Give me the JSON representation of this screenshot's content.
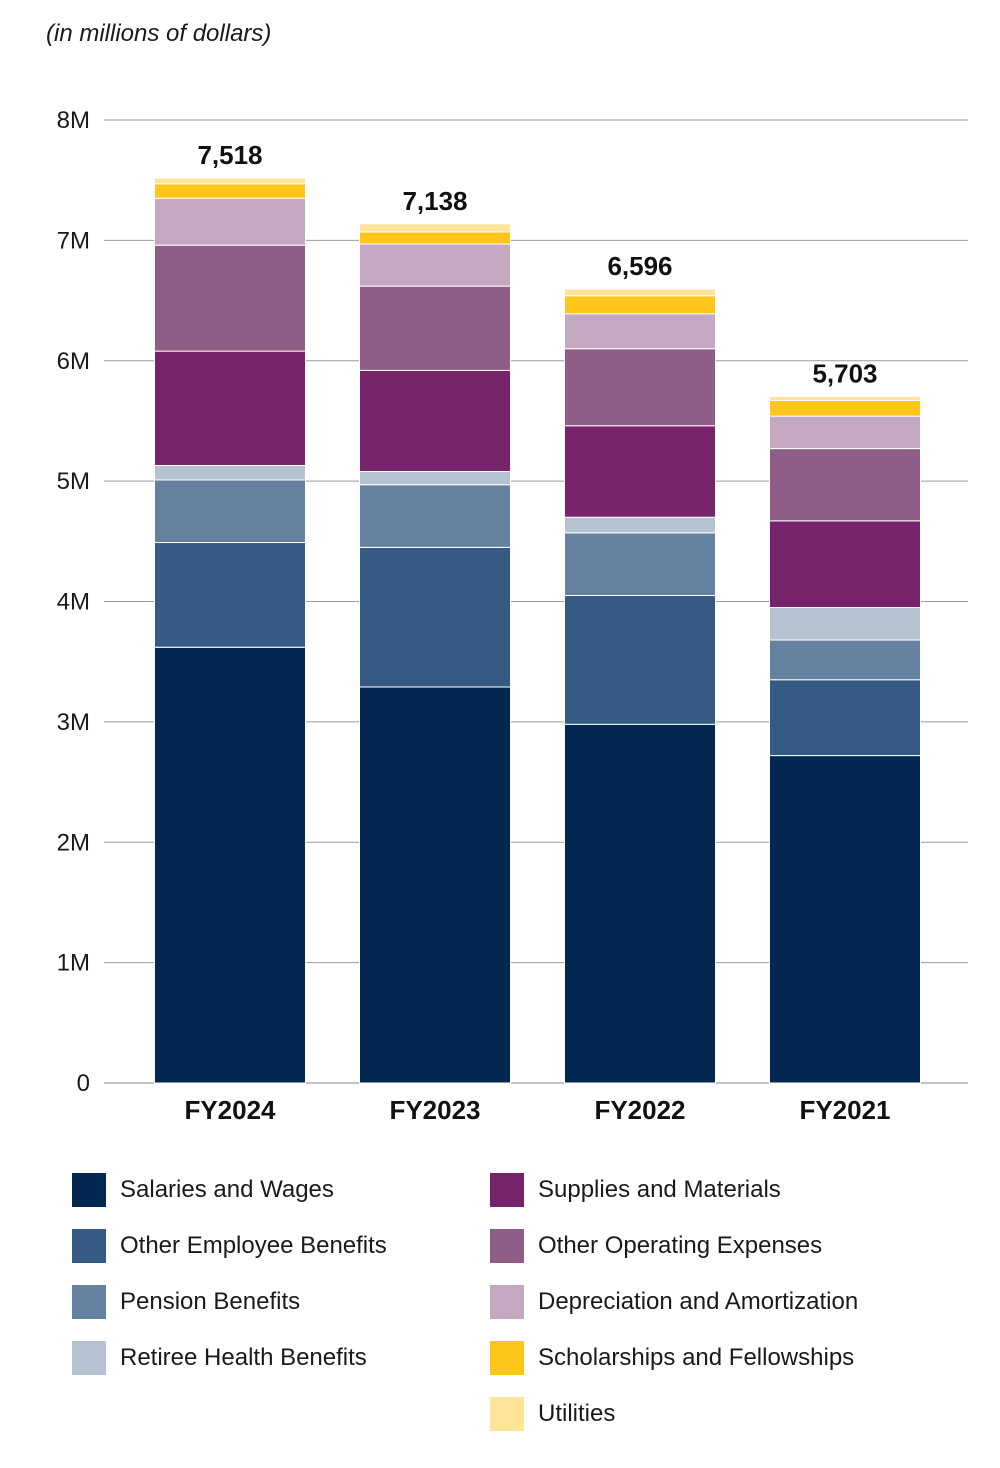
{
  "chart_data": {
    "type": "bar",
    "stacked": true,
    "subtitle": "(in millions of dollars)",
    "categories": [
      "FY2024",
      "FY2023",
      "FY2022",
      "FY2021"
    ],
    "totals": [
      "7,518",
      "7,138",
      "6,596",
      "5,703"
    ],
    "y_ticks": [
      "0",
      "1M",
      "2M",
      "3M",
      "4M",
      "5M",
      "6M",
      "7M",
      "8M"
    ],
    "ylim": [
      0,
      8000
    ],
    "grid": true,
    "legend_position": "bottom",
    "series": [
      {
        "name": "Salaries and Wages",
        "color": "#022851",
        "values": [
          3620,
          3290,
          2980,
          2720
        ]
      },
      {
        "name": "Other Employee Benefits",
        "color": "#355b85",
        "values": [
          870,
          1160,
          1070,
          630
        ]
      },
      {
        "name": "Pension Benefits",
        "color": "#6581a0",
        "values": [
          520,
          520,
          520,
          330
        ]
      },
      {
        "name": "Retiree Health Benefits",
        "color": "#b4c2d2",
        "values": [
          120,
          110,
          130,
          270
        ]
      },
      {
        "name": "Supplies and Materials",
        "color": "#76236c",
        "values": [
          950,
          840,
          760,
          720
        ]
      },
      {
        "name": "Other Operating Expenses",
        "color": "#8f5d87",
        "values": [
          880,
          700,
          640,
          600
        ]
      },
      {
        "name": "Depreciation and Amortization",
        "color": "#c4a7c1",
        "values": [
          390,
          350,
          290,
          270
        ]
      },
      {
        "name": "Scholarships and Fellowships",
        "color": "#ffc519",
        "values": [
          120,
          100,
          150,
          130
        ]
      },
      {
        "name": "Utilities",
        "color": "#ffe498",
        "values": [
          48,
          68,
          56,
          33
        ]
      }
    ]
  }
}
